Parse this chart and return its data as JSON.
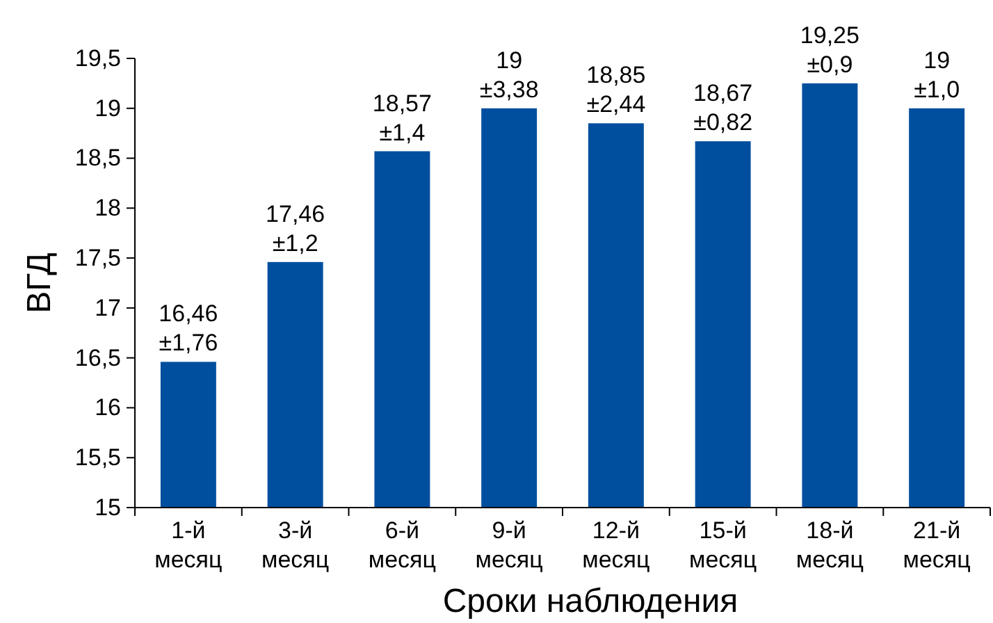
{
  "chart_data": {
    "type": "bar",
    "xlabel": "Сроки наблюдения",
    "ylabel": "ВГД",
    "categories": [
      "1-й\nмесяц",
      "3-й\nмесяц",
      "6-й\nмесяц",
      "9-й\nмесяц",
      "12-й\nмесяц",
      "15-й\nмесяц",
      "18-й\nмесяц",
      "21-й\nмесяц"
    ],
    "values": [
      16.46,
      17.46,
      18.57,
      19,
      18.85,
      18.67,
      19.25,
      19
    ],
    "value_labels": [
      "16,46\n±1,76",
      "17,46\n±1,2",
      "18,57\n±1,4",
      "19\n±3,38",
      "18,85\n±2,44",
      "18,67\n±0,82",
      "19,25\n±0,9",
      "19\n±1,0"
    ],
    "color": "#004f9f",
    "ylim": [
      15,
      19.5
    ],
    "yticks": [
      15,
      {
        "value": 15.5,
        "label": "15,5"
      },
      16,
      {
        "value": 16.5,
        "label": "16,5"
      },
      17,
      {
        "value": 17.5,
        "label": "17,5"
      },
      18,
      {
        "value": 18.5,
        "label": "18,5"
      },
      19,
      {
        "value": 19.5,
        "label": "19,5"
      }
    ],
    "grid": false
  }
}
